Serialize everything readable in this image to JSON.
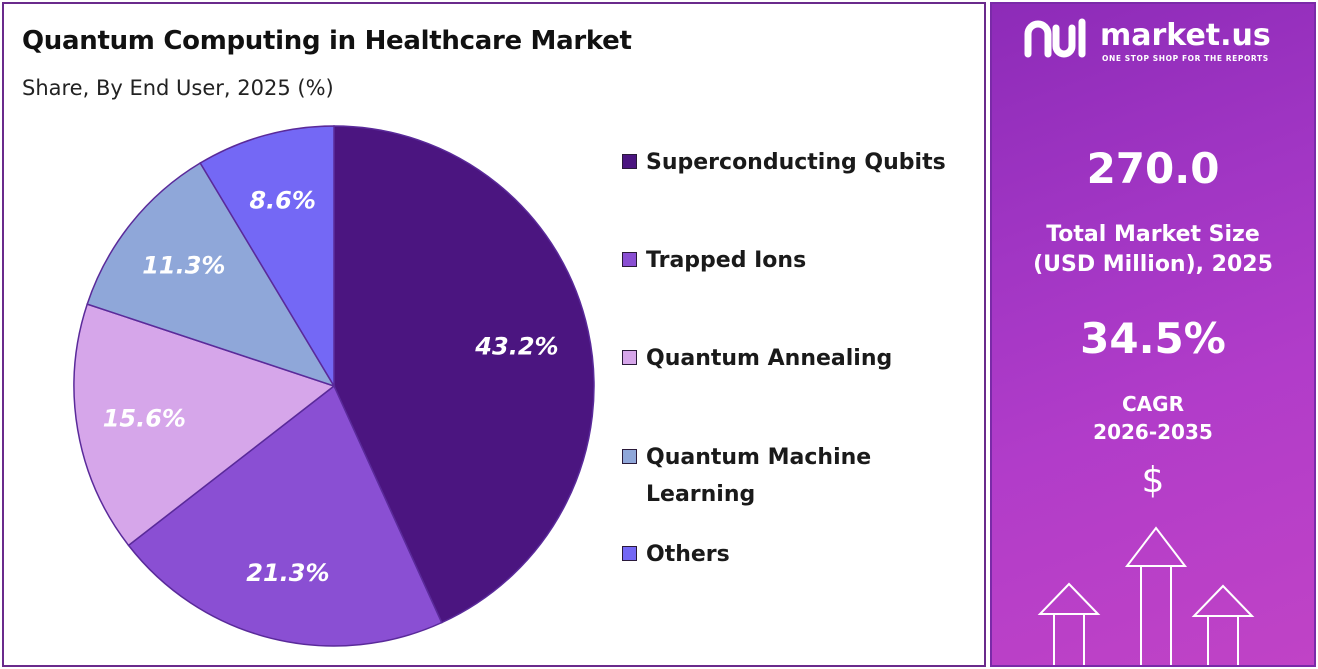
{
  "header": {
    "title": "Quantum Computing in Healthcare Market",
    "subtitle": "Share, By End User, 2025 (%)"
  },
  "chart_data": {
    "type": "pie",
    "categories": [
      "Superconducting Qubits",
      "Trapped Ions",
      "Quantum Annealing",
      "Quantum Machine Learning",
      "Others"
    ],
    "values": [
      43.2,
      21.3,
      15.6,
      11.3,
      8.6
    ],
    "labels": [
      "43.2%",
      "21.3%",
      "15.6%",
      "11.3%",
      "8.6%"
    ],
    "colors": [
      "#4b1580",
      "#8a4fd3",
      "#d6a6ea",
      "#8fa7d9",
      "#7468f5"
    ],
    "legend_placement": "right",
    "start_angle_deg": 0,
    "direction": "clockwise"
  },
  "legend": {
    "items": [
      {
        "label": "Superconducting Qubits",
        "color": "#4b1580"
      },
      {
        "label": "Trapped Ions",
        "color": "#8a4fd3"
      },
      {
        "label": "Quantum Annealing",
        "color": "#d6a6ea"
      },
      {
        "label": "Quantum Machine Learning",
        "color": "#8fa7d9"
      },
      {
        "label": "Others",
        "color": "#7468f5"
      }
    ]
  },
  "sidebar": {
    "logo_name": "market.us",
    "logo_tagline": "ONE STOP SHOP FOR THE REPORTS",
    "market_size": "270.0",
    "market_size_label_1": "Total Market Size",
    "market_size_label_2": "(USD Million), 2025",
    "cagr": "34.5%",
    "cagr_label": "CAGR",
    "cagr_period": "2026-2035",
    "currency_symbol": "$"
  }
}
